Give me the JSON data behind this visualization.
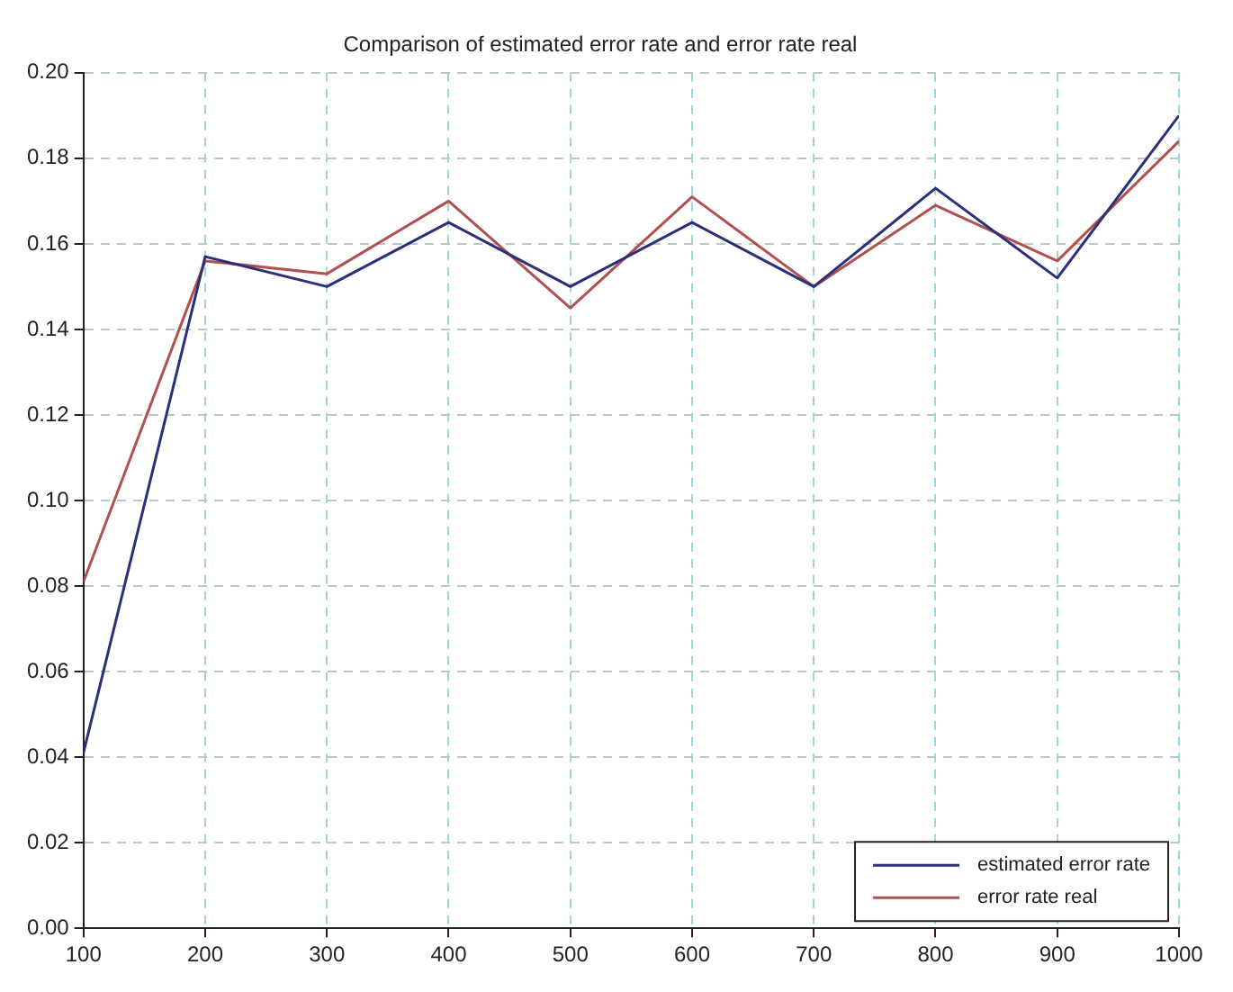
{
  "chart_data": {
    "type": "line",
    "title": "Comparison of estimated error rate and error rate real",
    "x": [
      100,
      200,
      300,
      400,
      500,
      600,
      700,
      800,
      900,
      1000
    ],
    "series": [
      {
        "name": "estimated error rate",
        "color": "#2b2f7a",
        "values": [
          0.041,
          0.157,
          0.15,
          0.165,
          0.15,
          0.165,
          0.15,
          0.173,
          0.152,
          0.19
        ]
      },
      {
        "name": "error rate real",
        "color": "#b0504f",
        "values": [
          0.081,
          0.156,
          0.153,
          0.17,
          0.145,
          0.171,
          0.15,
          0.169,
          0.156,
          0.184
        ]
      }
    ],
    "xlim": [
      100,
      1000
    ],
    "xticks": [
      100,
      200,
      300,
      400,
      500,
      600,
      700,
      800,
      900,
      1000
    ],
    "ylim": [
      0,
      0.2
    ],
    "yticks": [
      {
        "value": 0,
        "label": "0.00"
      },
      {
        "value": 0.02,
        "label": "0.02"
      },
      {
        "value": 0.04,
        "label": "0.04"
      },
      {
        "value": 0.06,
        "label": "0.06"
      },
      {
        "value": 0.08,
        "label": "0.08"
      },
      {
        "value": 0.1,
        "label": "0.10"
      },
      {
        "value": 0.12,
        "label": "0.12"
      },
      {
        "value": 0.14,
        "label": "0.14"
      },
      {
        "value": 0.16,
        "label": "0.16"
      },
      {
        "value": 0.18,
        "label": "0.18"
      },
      {
        "value": 0.2,
        "label": "0.20"
      }
    ],
    "grid": true,
    "legend": "bottom right",
    "marker": "none",
    "line_style": "solid"
  }
}
